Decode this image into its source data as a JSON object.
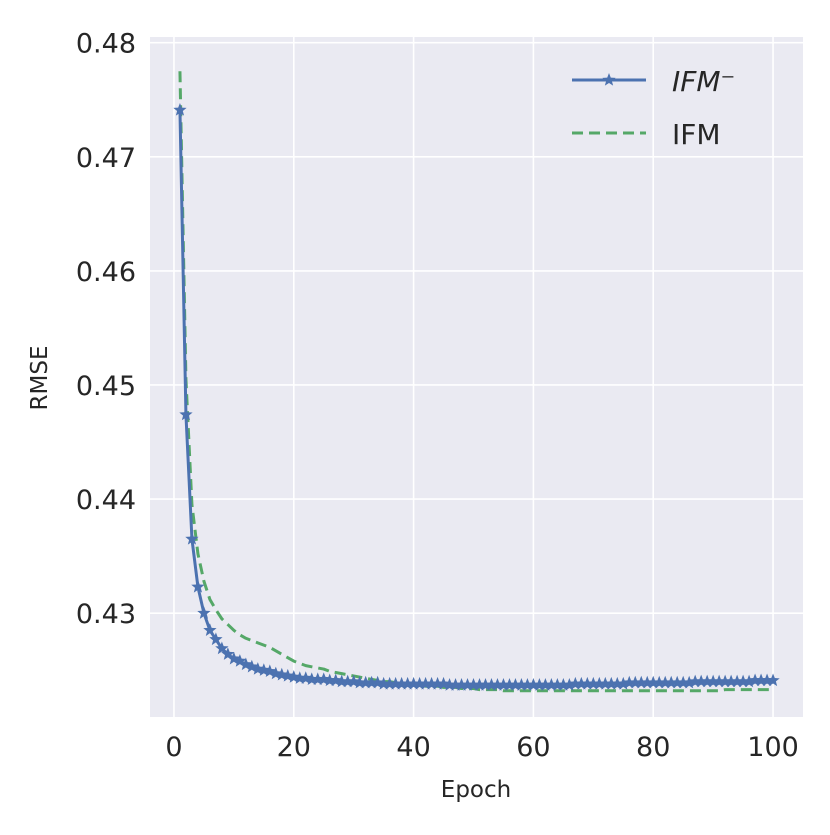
{
  "chart_data": {
    "type": "line",
    "xlabel": "Epoch",
    "ylabel": "RMSE",
    "xlim": [
      -4,
      105
    ],
    "ylim": [
      0.4209,
      0.4805
    ],
    "xticks": [
      0,
      20,
      40,
      60,
      80,
      100
    ],
    "xtick_labels": [
      "0",
      "20",
      "40",
      "60",
      "80",
      "100"
    ],
    "yticks": [
      0.43,
      0.44,
      0.45,
      0.46,
      0.47,
      0.48
    ],
    "ytick_labels": [
      "0.43",
      "0.44",
      "0.45",
      "0.46",
      "0.47",
      "0.48"
    ],
    "grid": true,
    "legend_position": "top-right",
    "background_color": "#eaeaf2",
    "series": [
      {
        "name": "IFM⁻",
        "color": "#4c72b0",
        "line_style": "solid",
        "marker": "star",
        "x": [
          1,
          2,
          3,
          4,
          5,
          6,
          7,
          8,
          9,
          10,
          11,
          12,
          13,
          14,
          15,
          16,
          17,
          18,
          19,
          20,
          21,
          22,
          23,
          24,
          25,
          26,
          27,
          28,
          29,
          30,
          31,
          32,
          33,
          34,
          35,
          36,
          37,
          38,
          39,
          40,
          41,
          42,
          43,
          44,
          45,
          46,
          47,
          48,
          49,
          50,
          51,
          52,
          53,
          54,
          55,
          56,
          57,
          58,
          59,
          60,
          61,
          62,
          63,
          64,
          65,
          66,
          67,
          68,
          69,
          70,
          71,
          72,
          73,
          74,
          75,
          76,
          77,
          78,
          79,
          80,
          81,
          82,
          83,
          84,
          85,
          86,
          87,
          88,
          89,
          90,
          91,
          92,
          93,
          94,
          95,
          96,
          97,
          98,
          99,
          100
        ],
        "y": [
          0.4741,
          0.4474,
          0.4365,
          0.4323,
          0.43,
          0.4285,
          0.4277,
          0.4269,
          0.4264,
          0.426,
          0.4258,
          0.4255,
          0.4253,
          0.4251,
          0.425,
          0.4249,
          0.4247,
          0.4246,
          0.4245,
          0.4244,
          0.4243,
          0.4243,
          0.4242,
          0.4242,
          0.4242,
          0.4241,
          0.4241,
          0.424,
          0.424,
          0.424,
          0.4239,
          0.4239,
          0.4239,
          0.4239,
          0.4238,
          0.4238,
          0.4238,
          0.4238,
          0.4238,
          0.4238,
          0.4238,
          0.4238,
          0.4238,
          0.4238,
          0.4238,
          0.4237,
          0.4237,
          0.4237,
          0.4237,
          0.4237,
          0.4237,
          0.4237,
          0.4237,
          0.4237,
          0.4237,
          0.4237,
          0.4237,
          0.4237,
          0.4237,
          0.4237,
          0.4237,
          0.4237,
          0.4237,
          0.4237,
          0.4237,
          0.4237,
          0.4238,
          0.4238,
          0.4238,
          0.4238,
          0.4238,
          0.4238,
          0.4238,
          0.4238,
          0.4238,
          0.4239,
          0.4239,
          0.4239,
          0.4239,
          0.4239,
          0.4239,
          0.4239,
          0.4239,
          0.4239,
          0.4239,
          0.4239,
          0.424,
          0.424,
          0.424,
          0.424,
          0.424,
          0.424,
          0.424,
          0.424,
          0.424,
          0.424,
          0.4241,
          0.4241,
          0.4241,
          0.4241
        ]
      },
      {
        "name": "IFM",
        "color": "#55a868",
        "line_style": "dashed",
        "marker": "none",
        "x": [
          1,
          2,
          3,
          4,
          5,
          6,
          7,
          8,
          9,
          10,
          11,
          12,
          13,
          14,
          15,
          16,
          17,
          18,
          19,
          20,
          21,
          22,
          23,
          24,
          25,
          26,
          27,
          28,
          29,
          30,
          31,
          32,
          33,
          34,
          35,
          36,
          37,
          38,
          39,
          40,
          41,
          42,
          43,
          44,
          45,
          46,
          47,
          48,
          49,
          50,
          51,
          52,
          53,
          54,
          55,
          56,
          57,
          58,
          59,
          60,
          61,
          62,
          63,
          64,
          65,
          66,
          67,
          68,
          69,
          70,
          71,
          72,
          73,
          74,
          75,
          76,
          77,
          78,
          79,
          80,
          81,
          82,
          83,
          84,
          85,
          86,
          87,
          88,
          89,
          90,
          91,
          92,
          93,
          94,
          95,
          96,
          97,
          98,
          99,
          100
        ],
        "y": [
          0.4775,
          0.4505,
          0.4395,
          0.4352,
          0.4328,
          0.4312,
          0.4303,
          0.4295,
          0.429,
          0.4285,
          0.4281,
          0.4278,
          0.4276,
          0.4274,
          0.4272,
          0.427,
          0.4267,
          0.4264,
          0.4261,
          0.4258,
          0.4256,
          0.4254,
          0.4253,
          0.4252,
          0.4251,
          0.4249,
          0.4248,
          0.4247,
          0.4246,
          0.4245,
          0.4244,
          0.4243,
          0.4242,
          0.4241,
          0.424,
          0.424,
          0.4239,
          0.4238,
          0.4238,
          0.4237,
          0.4237,
          0.4236,
          0.4236,
          0.4236,
          0.4235,
          0.4235,
          0.4235,
          0.4234,
          0.4234,
          0.4234,
          0.4233,
          0.4233,
          0.4233,
          0.4233,
          0.4232,
          0.4232,
          0.4232,
          0.4232,
          0.4232,
          0.4232,
          0.4232,
          0.4232,
          0.4232,
          0.4232,
          0.4232,
          0.4232,
          0.4232,
          0.4232,
          0.4232,
          0.4232,
          0.4232,
          0.4232,
          0.4232,
          0.4232,
          0.4232,
          0.4232,
          0.4232,
          0.4232,
          0.4232,
          0.4232,
          0.4232,
          0.4232,
          0.4232,
          0.4232,
          0.4232,
          0.4232,
          0.4232,
          0.4232,
          0.4232,
          0.4232,
          0.4232,
          0.4233,
          0.4233,
          0.4233,
          0.4233,
          0.4233,
          0.4233,
          0.4233,
          0.4233,
          0.4233
        ]
      }
    ]
  }
}
